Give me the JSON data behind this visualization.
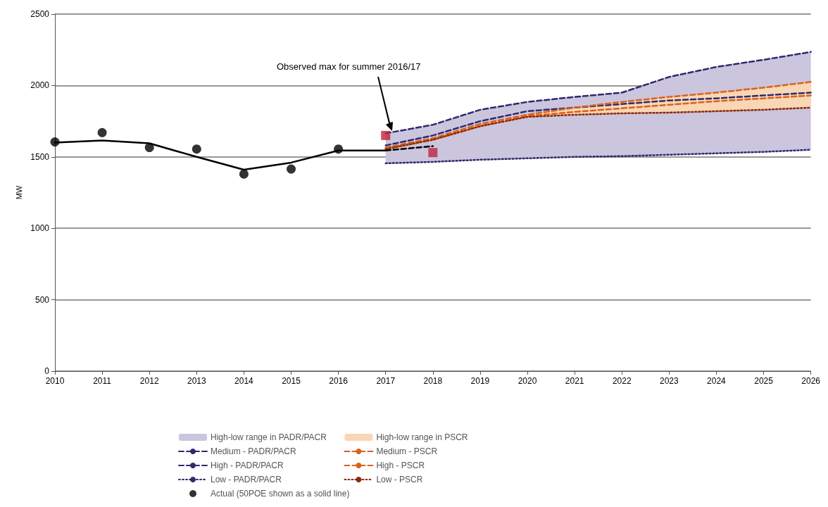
{
  "chart_data": {
    "type": "line",
    "ylabel": "MW",
    "categories": [
      "2010",
      "2011",
      "2012",
      "2013",
      "2014",
      "2015",
      "2016",
      "2017",
      "2018",
      "2019",
      "2020",
      "2021",
      "2022",
      "2023",
      "2024",
      "2025",
      "2026"
    ],
    "ylim": [
      0,
      2500
    ],
    "yticks": [
      0,
      500,
      1000,
      1500,
      2000,
      2500
    ],
    "grid": "y",
    "legend": "bottom",
    "annotations": [
      "Observed max for summer 2016/17"
    ],
    "series": [
      {
        "name": "High-low range in PADR/PACR",
        "type": "area",
        "color": "#cbc5de",
        "values": [
          null,
          null,
          null,
          null,
          null,
          null,
          null,
          null,
          null,
          null,
          null,
          null,
          null,
          null,
          null,
          null,
          null
        ],
        "lower": [
          null,
          null,
          null,
          null,
          null,
          null,
          null,
          1455,
          1465,
          1480,
          1490,
          1500,
          1505,
          1515,
          1525,
          1535,
          1550
        ],
        "upper": [
          null,
          null,
          null,
          null,
          null,
          null,
          null,
          1665,
          1725,
          1830,
          1885,
          1920,
          1950,
          2060,
          2130,
          2180,
          2235
        ]
      },
      {
        "name": "Medium - PADR/PACR",
        "color": "#2e2a6b",
        "line_style": "dashed",
        "marker": "none",
        "values": [
          null,
          null,
          null,
          null,
          null,
          null,
          null,
          1580,
          1650,
          1750,
          1820,
          1845,
          1870,
          1895,
          1910,
          1930,
          1950
        ]
      },
      {
        "name": "High - PADR/PACR",
        "color": "#2e2a6b",
        "line_style": "dashed",
        "marker": "none",
        "values": [
          null,
          null,
          null,
          null,
          null,
          null,
          null,
          1665,
          1725,
          1830,
          1885,
          1920,
          1950,
          2060,
          2130,
          2180,
          2235
        ]
      },
      {
        "name": "Low - PADR/PACR",
        "color": "#2e2a6b",
        "line_style": "dotted",
        "marker": "none",
        "values": [
          null,
          null,
          null,
          null,
          null,
          null,
          null,
          1455,
          1465,
          1480,
          1490,
          1500,
          1505,
          1515,
          1525,
          1535,
          1550
        ]
      },
      {
        "name": "Actual (50POE shown as a solid line)",
        "type": "scatter",
        "color": "#000000",
        "marker": "circle",
        "values": [
          1605,
          1670,
          1565,
          1555,
          1380,
          1415,
          1555,
          null,
          null,
          null,
          null,
          null,
          null,
          null,
          null,
          null,
          null
        ]
      },
      {
        "name": "High-low range in PSCR",
        "type": "area",
        "color": "#f9d6b5",
        "values": [
          null,
          null,
          null,
          null,
          null,
          null,
          null,
          null,
          null,
          null,
          null,
          null,
          null,
          null,
          null,
          null,
          null
        ],
        "lower": [
          null,
          null,
          null,
          null,
          null,
          null,
          null,
          1555,
          1620,
          1715,
          1780,
          1795,
          1805,
          1810,
          1820,
          1830,
          1845
        ],
        "upper": [
          null,
          null,
          null,
          null,
          null,
          null,
          null,
          1565,
          1630,
          1730,
          1795,
          1845,
          1885,
          1920,
          1950,
          1985,
          2025
        ]
      },
      {
        "name": "Medium - PSCR",
        "color": "#d9621c",
        "line_style": "dashed",
        "marker": "none",
        "values": [
          null,
          null,
          null,
          null,
          null,
          null,
          null,
          1555,
          1620,
          1715,
          1785,
          1815,
          1840,
          1865,
          1890,
          1910,
          1930
        ]
      },
      {
        "name": "High - PSCR",
        "color": "#d9621c",
        "line_style": "dashed",
        "marker": "none",
        "values": [
          null,
          null,
          null,
          null,
          null,
          null,
          null,
          1565,
          1630,
          1730,
          1795,
          1845,
          1885,
          1920,
          1950,
          1985,
          2025
        ]
      },
      {
        "name": "Low - PSCR",
        "color": "#8b2a0a",
        "line_style": "dotted",
        "marker": "none",
        "values": [
          null,
          null,
          null,
          null,
          null,
          null,
          null,
          1555,
          1620,
          1715,
          1780,
          1795,
          1805,
          1810,
          1820,
          1830,
          1845
        ]
      },
      {
        "color": "#000000",
        "line_style": "solid",
        "marker": "none",
        "values": [
          1600,
          1615,
          1595,
          1500,
          1410,
          1460,
          1545,
          1545,
          null,
          null,
          null,
          null,
          null,
          null,
          null,
          null,
          null
        ]
      },
      {
        "color": "#000000",
        "line_style": "dashed",
        "marker": "none",
        "values": [
          null,
          null,
          null,
          null,
          null,
          null,
          null,
          1545,
          1575,
          null,
          null,
          null,
          null,
          null,
          null,
          null,
          null
        ]
      },
      {
        "type": "scatter",
        "color": "#c0243a",
        "marker": "square",
        "values": [
          null,
          null,
          null,
          null,
          null,
          null,
          null,
          1650,
          1530,
          null,
          null,
          null,
          null,
          null,
          null,
          null,
          null
        ]
      }
    ]
  }
}
